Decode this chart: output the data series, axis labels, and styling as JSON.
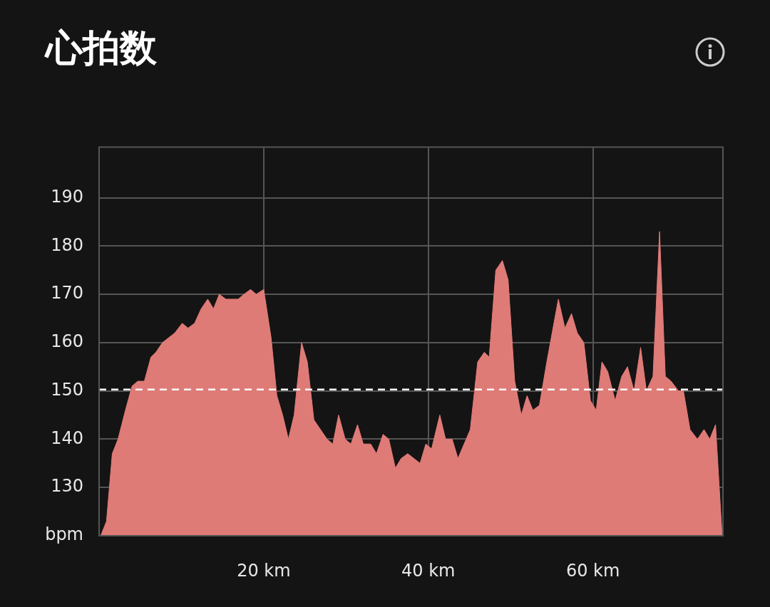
{
  "chart_data": {
    "type": "area",
    "title": "心拍数",
    "x": [
      0.2,
      0.9,
      1.6,
      2.3,
      3.2,
      4.0,
      4.7,
      5.5,
      6.3,
      6.9,
      7.7,
      9.2,
      10.1,
      10.8,
      11.6,
      12.4,
      13.2,
      13.9,
      14.6,
      15.4,
      16.9,
      17.6,
      18.4,
      19.1,
      20.0,
      20.9,
      21.6,
      22.3,
      23.0,
      23.7,
      24.6,
      25.3,
      26.1,
      27.7,
      28.4,
      29.1,
      29.9,
      30.6,
      31.4,
      32.1,
      33.0,
      33.7,
      34.5,
      35.2,
      36.0,
      36.7,
      37.5,
      39.0,
      39.7,
      40.4,
      41.4,
      42.1,
      42.9,
      43.6,
      45.1,
      46.0,
      46.8,
      47.4,
      48.2,
      49.0,
      49.7,
      50.5,
      51.3,
      52.0,
      52.7,
      53.5,
      54.4,
      55.8,
      56.6,
      57.4,
      58.1,
      58.9,
      59.7,
      60.4,
      61.1,
      61.8,
      62.7,
      63.5,
      64.2,
      65.0,
      65.8,
      66.5,
      67.3,
      68.1,
      68.8,
      69.5,
      70.4,
      71.0,
      71.8,
      72.7,
      73.5,
      74.2,
      74.9,
      75.7
    ],
    "series": [
      {
        "color": "#df7b77",
        "values": [
          120,
          123,
          137,
          140,
          146,
          151,
          152,
          152,
          157,
          158,
          160,
          162,
          164,
          163,
          164,
          167,
          169,
          167,
          170,
          169,
          169,
          170,
          171,
          170,
          171,
          161,
          149,
          145,
          140,
          145,
          160,
          156,
          144,
          140,
          139,
          145,
          140,
          139,
          143,
          139,
          139,
          137,
          141,
          140,
          134,
          136,
          137,
          135,
          139,
          138,
          145,
          140,
          140,
          136,
          142,
          156,
          158,
          157,
          175,
          177,
          173,
          152,
          145,
          149,
          146,
          147,
          156,
          169,
          163,
          166,
          162,
          160,
          148,
          146,
          156,
          154,
          148,
          153,
          155,
          150,
          159,
          150,
          153,
          183,
          153,
          152,
          150,
          150,
          142,
          140,
          142,
          140,
          143,
          120
        ]
      }
    ],
    "xlim": [
      0,
      75.8
    ],
    "xticks": [
      {
        "value": 20,
        "label": "20 km"
      },
      {
        "value": 40,
        "label": "40 km"
      },
      {
        "value": 60,
        "label": "60 km"
      }
    ],
    "ylim": [
      120,
      200.5
    ],
    "yticks": [
      {
        "value": 120,
        "label": "bpm"
      },
      130,
      140,
      150,
      160,
      170,
      180,
      190
    ],
    "grid": true,
    "legend": false,
    "ref_lines": [
      {
        "axis": "y",
        "value": 150.3,
        "color": "#ffffff",
        "line_style": "dashed"
      }
    ]
  }
}
